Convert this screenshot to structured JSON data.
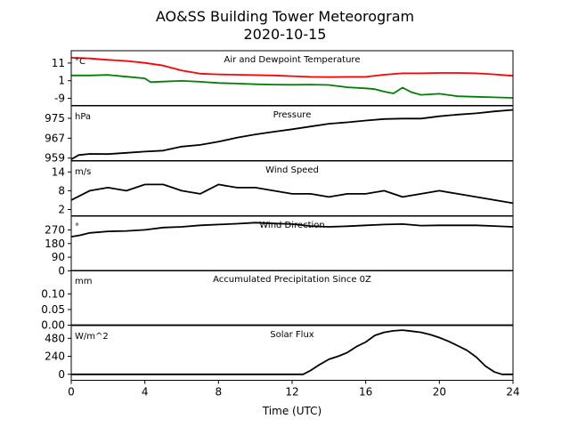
{
  "chart_data": {
    "type": "line",
    "title": "AO&SS Building Tower Meteorogram",
    "subtitle": "2020-10-15",
    "xlabel": "Time (UTC)",
    "xlim": [
      0,
      24
    ],
    "xticks": [
      0,
      4,
      8,
      12,
      16,
      20,
      24
    ],
    "panels": [
      {
        "title": "Air and Dewpoint Temperature",
        "unit": "°C",
        "ylim": [
          -13,
          18
        ],
        "yticks": [
          -9,
          1,
          11
        ],
        "series": [
          {
            "color": "#ff0000",
            "x": [
              0,
              1,
              2,
              3,
              4,
              5,
              6,
              7,
              8,
              9,
              10,
              11,
              12,
              13,
              14,
              15,
              16,
              17,
              18,
              19,
              20,
              21,
              22,
              23,
              24
            ],
            "y": [
              14,
              13.6,
              12.8,
              12.2,
              11.1,
              9.6,
              6.8,
              5,
              4.6,
              4.4,
              4.2,
              4,
              3.6,
              3.2,
              3.1,
              3.2,
              3.2,
              4.4,
              5.2,
              5.2,
              5.4,
              5.4,
              5.2,
              4.6,
              3.8
            ]
          },
          {
            "color": "#008000",
            "x": [
              0,
              1,
              2,
              3,
              4,
              4.3,
              5,
              6,
              7,
              8,
              9,
              10,
              11,
              12,
              13,
              14,
              15,
              16,
              16.5,
              17,
              17.5,
              18,
              18.5,
              19,
              20,
              21,
              22,
              23,
              24
            ],
            "y": [
              4,
              4,
              4.3,
              3.3,
              2.3,
              0.2,
              0.5,
              0.9,
              0.4,
              -0.3,
              -0.6,
              -1,
              -1.2,
              -1.3,
              -1.2,
              -1.4,
              -2.7,
              -3.3,
              -3.8,
              -5.2,
              -6.2,
              -2.9,
              -5.6,
              -7,
              -6.4,
              -7.8,
              -8.1,
              -8.4,
              -8.7
            ]
          }
        ]
      },
      {
        "title": "Pressure",
        "unit": "hPa",
        "ylim": [
          958,
          980
        ],
        "yticks": [
          959,
          967,
          975
        ],
        "series": [
          {
            "color": "#000000",
            "x": [
              0,
              0.4,
              1,
              2,
              3,
              4,
              5,
              6,
              7,
              8,
              9,
              10,
              11,
              12,
              13,
              14,
              15,
              16,
              17,
              18,
              19,
              20,
              21,
              22,
              23,
              24
            ],
            "y": [
              958.5,
              960.2,
              960.7,
              960.6,
              961.1,
              961.6,
              962.0,
              963.6,
              964.3,
              965.6,
              967.2,
              968.5,
              969.6,
              970.6,
              971.7,
              972.8,
              973.4,
              974.1,
              974.7,
              974.9,
              974.9,
              975.8,
              976.5,
              977.0,
              977.8,
              978.4
            ]
          }
        ]
      },
      {
        "title": "Wind Speed",
        "unit": "m/s",
        "ylim": [
          0,
          17.5
        ],
        "yticks": [
          2,
          8,
          14
        ],
        "series": [
          {
            "color": "#000000",
            "x": [
              0,
              1,
              2,
              3,
              4,
              5,
              6,
              7,
              8,
              9,
              10,
              11,
              12,
              13,
              14,
              15,
              16,
              17,
              18,
              19,
              20,
              21,
              22,
              23,
              24
            ],
            "y": [
              5,
              8,
              9,
              8,
              10,
              10,
              8,
              7,
              10,
              9,
              9,
              8,
              7,
              7,
              6,
              7,
              7,
              8,
              6,
              7,
              8,
              7,
              6,
              5,
              4
            ]
          }
        ]
      },
      {
        "title": "Wind Direction",
        "unit": "°",
        "ylim": [
          0,
          360
        ],
        "yticks": [
          0,
          90,
          180,
          270
        ],
        "series": [
          {
            "color": "#000000",
            "x": [
              0,
              0.5,
              1,
              2,
              3,
              4,
              5,
              6,
              7,
              8,
              9,
              10,
              11,
              12,
              13,
              14,
              15,
              16,
              17,
              18,
              19,
              20,
              21,
              22,
              23,
              24
            ],
            "y": [
              225,
              235,
              250,
              260,
              263,
              270,
              285,
              290,
              300,
              305,
              310,
              317,
              312,
              308,
              295,
              290,
              294,
              300,
              305,
              308,
              298,
              300,
              300,
              300,
              295,
              290
            ]
          }
        ]
      },
      {
        "title": "Accumulated Precipitation Since 0Z",
        "unit": "mm",
        "ylim": [
          0,
          0.175
        ],
        "yticks": [
          0,
          0.05,
          0.1
        ],
        "ytick_labels": [
          "0.00",
          "0.05",
          "0.10"
        ],
        "series": [
          {
            "color": "#000000",
            "x": [
              0,
              24
            ],
            "y": [
              0,
              0
            ]
          }
        ]
      },
      {
        "title": "Solar Flux",
        "unit": "W/m^2",
        "ylim": [
          -80,
          650
        ],
        "yticks": [
          0,
          240,
          480
        ],
        "series": [
          {
            "color": "#000000",
            "x": [
              0,
              12.6,
              13,
              13.5,
              14,
              14.5,
              15,
              15.5,
              16,
              16.5,
              17,
              17.5,
              18,
              18.5,
              19,
              19.5,
              20,
              20.5,
              21,
              21.5,
              22,
              22.5,
              23,
              23.4,
              24
            ],
            "y": [
              0,
              0,
              50,
              130,
              200,
              240,
              290,
              370,
              430,
              520,
              560,
              580,
              590,
              575,
              560,
              530,
              490,
              440,
              380,
              320,
              230,
              110,
              30,
              0,
              0
            ]
          }
        ]
      }
    ]
  }
}
